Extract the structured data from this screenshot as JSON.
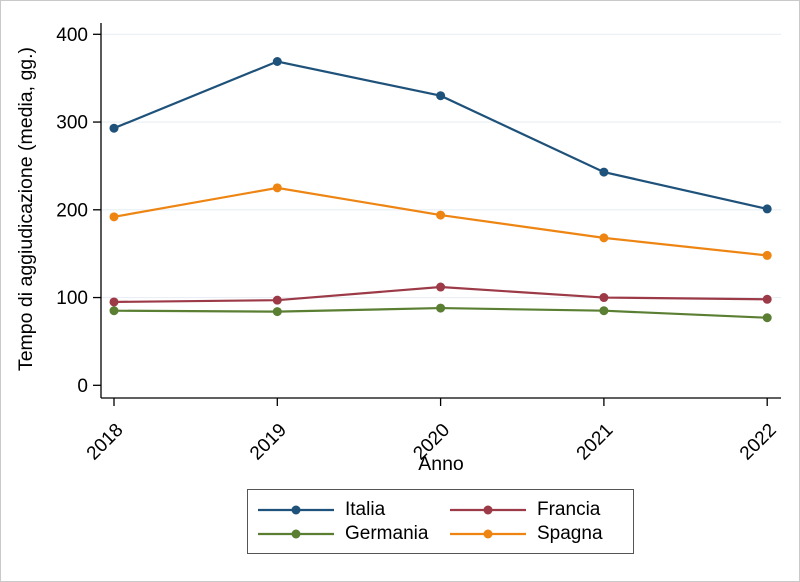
{
  "figure": {
    "background": "#ffffff",
    "border_color": "#c9c9c9"
  },
  "chart_data": {
    "type": "line",
    "title": "",
    "xlabel": "Anno",
    "ylabel": "Tempo di aggiudicazione (media, gg.)",
    "x": [
      2018,
      2019,
      2020,
      2021,
      2022
    ],
    "x_tick_labels": [
      "2018",
      "2019",
      "2020",
      "2021",
      "2022"
    ],
    "y_ticks": [
      0,
      100,
      200,
      300,
      400
    ],
    "ylim": [
      0,
      400
    ],
    "grid": "horizontal",
    "gridline_color": "#e9eff4",
    "axis_color": "#000000",
    "text_color": "#000000",
    "legend_position": "bottom-center-boxed",
    "legend_border_color": "#555555",
    "series": [
      {
        "name": "Italia",
        "color": "#1f527a",
        "values": [
          293,
          369,
          330,
          243,
          201
        ]
      },
      {
        "name": "Francia",
        "color": "#9c3a47",
        "values": [
          95,
          97,
          112,
          100,
          98
        ]
      },
      {
        "name": "Germania",
        "color": "#5a7e32",
        "values": [
          85,
          84,
          88,
          85,
          77
        ]
      },
      {
        "name": "Spagna",
        "color": "#ee8512",
        "values": [
          192,
          225,
          194,
          168,
          148
        ]
      }
    ]
  }
}
